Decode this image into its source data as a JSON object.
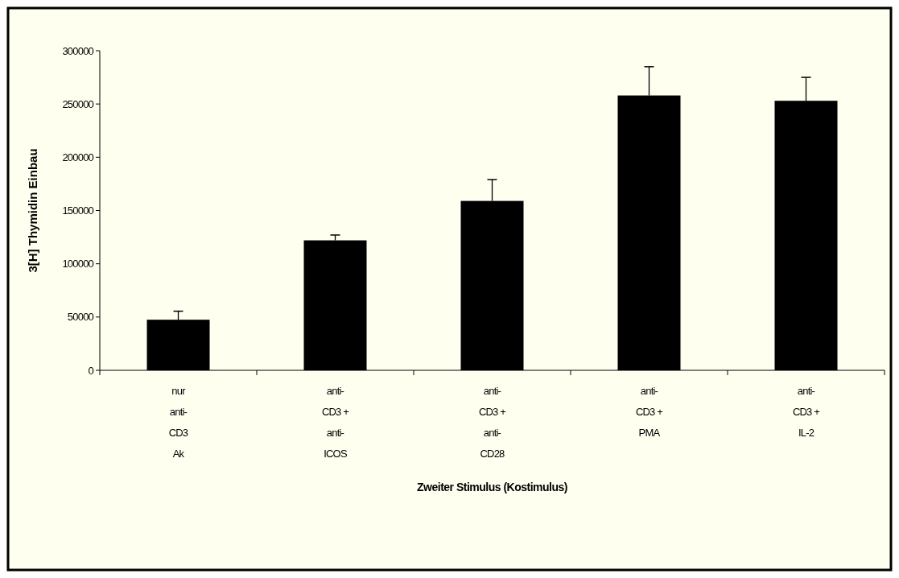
{
  "chart_data": {
    "type": "bar",
    "xlabel": "Zweiter Stimulus (Kostimulus)",
    "ylabel": "3[H] Thymidin Einbau",
    "categories": [
      "nur anti-CD3 Ak",
      "anti-CD3 + anti-ICOS",
      "anti-CD3 + anti-CD28",
      "anti-CD3 + PMA",
      "anti-CD3 + IL-2"
    ],
    "values": [
      47500,
      122000,
      159000,
      258000,
      253000
    ],
    "errors": [
      [
        47500,
        55500
      ],
      [
        122000,
        127000
      ],
      [
        159000,
        179000
      ],
      [
        258000,
        285000
      ],
      [
        253000,
        275000
      ]
    ],
    "color": "#000000",
    "ylim": [
      0,
      300000
    ],
    "yticks": [
      0,
      50000,
      100000,
      150000,
      200000,
      250000,
      300000
    ],
    "grid": false
  }
}
